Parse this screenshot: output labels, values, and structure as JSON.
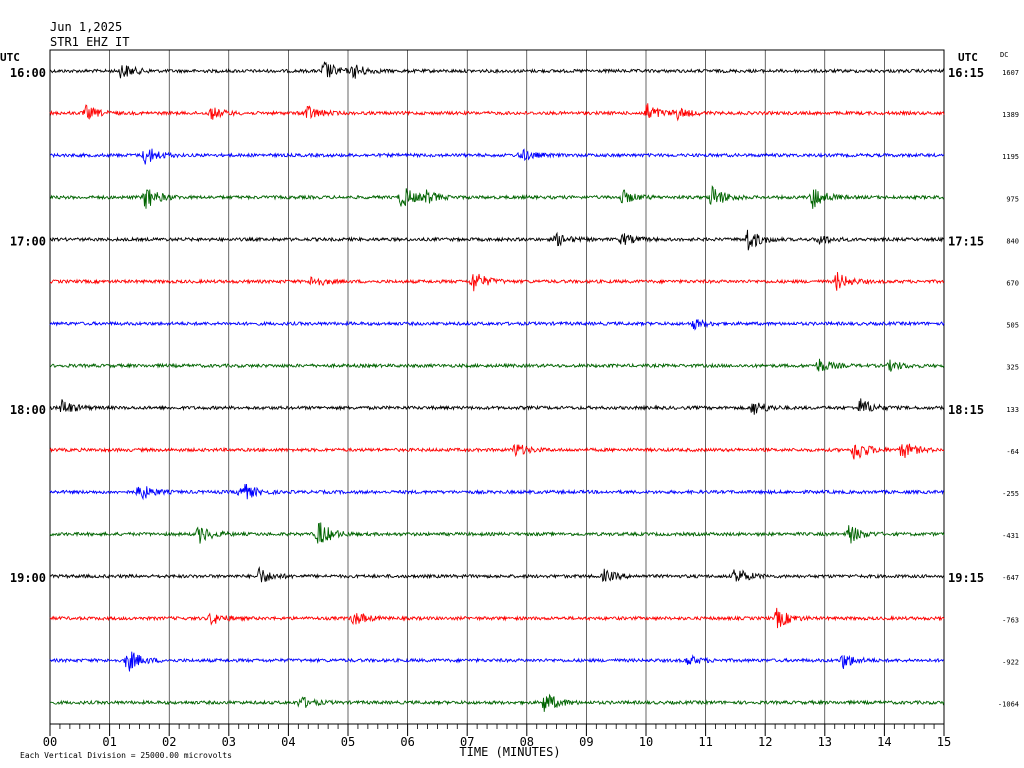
{
  "header": {
    "date": "Jun 1,2025",
    "station": "STR1 EHZ IT"
  },
  "left_label": "UTC",
  "right_label": "UTC",
  "dc_label": "DC",
  "footer": {
    "xlabel": "TIME (MINUTES)",
    "scale_note": "Each Vertical Division = 25000.00 microvolts"
  },
  "chart_data": {
    "type": "line",
    "x_range": [
      0,
      15
    ],
    "x_tick_labels": [
      "00",
      "01",
      "02",
      "03",
      "04",
      "05",
      "06",
      "07",
      "08",
      "09",
      "10",
      "11",
      "12",
      "13",
      "14",
      "15"
    ],
    "trace_colors": [
      "#000000",
      "#ff0000",
      "#0000ff",
      "#006400"
    ],
    "traces": [
      {
        "left": "16:00",
        "right": "16:15",
        "dc": "1607"
      },
      {
        "left": "",
        "right": "",
        "dc": "1389"
      },
      {
        "left": "",
        "right": "",
        "dc": "1195"
      },
      {
        "left": "",
        "right": "",
        "dc": "975"
      },
      {
        "left": "17:00",
        "right": "17:15",
        "dc": "840"
      },
      {
        "left": "",
        "right": "",
        "dc": "670"
      },
      {
        "left": "",
        "right": "",
        "dc": "505"
      },
      {
        "left": "",
        "right": "",
        "dc": "325"
      },
      {
        "left": "18:00",
        "right": "18:15",
        "dc": "133"
      },
      {
        "left": "",
        "right": "",
        "dc": "-64"
      },
      {
        "left": "",
        "right": "",
        "dc": "-255"
      },
      {
        "left": "",
        "right": "",
        "dc": "-431"
      },
      {
        "left": "19:00",
        "right": "19:15",
        "dc": "-647"
      },
      {
        "left": "",
        "right": "",
        "dc": "-763"
      },
      {
        "left": "",
        "right": "",
        "dc": "-922"
      },
      {
        "left": "",
        "right": "",
        "dc": "-1064"
      }
    ],
    "events": [
      [
        {
          "t": 1.2,
          "a": 8
        },
        {
          "t": 4.6,
          "a": 10
        },
        {
          "t": 5.1,
          "a": 7
        }
      ],
      [
        {
          "t": 0.6,
          "a": 7
        },
        {
          "t": 2.7,
          "a": 6
        },
        {
          "t": 4.3,
          "a": 8
        },
        {
          "t": 10.0,
          "a": 10
        },
        {
          "t": 10.5,
          "a": 6
        }
      ],
      [
        {
          "t": 1.6,
          "a": 10
        },
        {
          "t": 7.9,
          "a": 6
        }
      ],
      [
        {
          "t": 1.6,
          "a": 12
        },
        {
          "t": 5.9,
          "a": 12
        },
        {
          "t": 6.3,
          "a": 6
        },
        {
          "t": 9.6,
          "a": 7
        },
        {
          "t": 11.1,
          "a": 12
        },
        {
          "t": 12.8,
          "a": 12
        }
      ],
      [
        {
          "t": 8.5,
          "a": 6
        },
        {
          "t": 9.6,
          "a": 6
        },
        {
          "t": 11.7,
          "a": 12
        },
        {
          "t": 12.9,
          "a": 5
        }
      ],
      [
        {
          "t": 4.4,
          "a": 6
        },
        {
          "t": 7.1,
          "a": 11
        },
        {
          "t": 13.2,
          "a": 9
        }
      ],
      [
        {
          "t": 10.8,
          "a": 5
        }
      ],
      [
        {
          "t": 12.9,
          "a": 7
        },
        {
          "t": 14.1,
          "a": 5
        }
      ],
      [
        {
          "t": 0.2,
          "a": 8
        },
        {
          "t": 11.8,
          "a": 8
        },
        {
          "t": 13.6,
          "a": 9
        }
      ],
      [
        {
          "t": 7.8,
          "a": 7
        },
        {
          "t": 13.5,
          "a": 12
        },
        {
          "t": 14.3,
          "a": 9
        }
      ],
      [
        {
          "t": 1.5,
          "a": 9
        },
        {
          "t": 3.2,
          "a": 11
        }
      ],
      [
        {
          "t": 2.5,
          "a": 9
        },
        {
          "t": 4.5,
          "a": 14
        },
        {
          "t": 13.4,
          "a": 10
        }
      ],
      [
        {
          "t": 3.5,
          "a": 9
        },
        {
          "t": 9.3,
          "a": 6
        },
        {
          "t": 11.5,
          "a": 9
        }
      ],
      [
        {
          "t": 2.7,
          "a": 6
        },
        {
          "t": 5.1,
          "a": 7
        },
        {
          "t": 12.2,
          "a": 10
        }
      ],
      [
        {
          "t": 1.3,
          "a": 12
        },
        {
          "t": 10.7,
          "a": 5
        },
        {
          "t": 13.3,
          "a": 8
        }
      ],
      [
        {
          "t": 4.2,
          "a": 6
        },
        {
          "t": 8.3,
          "a": 11
        }
      ]
    ]
  }
}
